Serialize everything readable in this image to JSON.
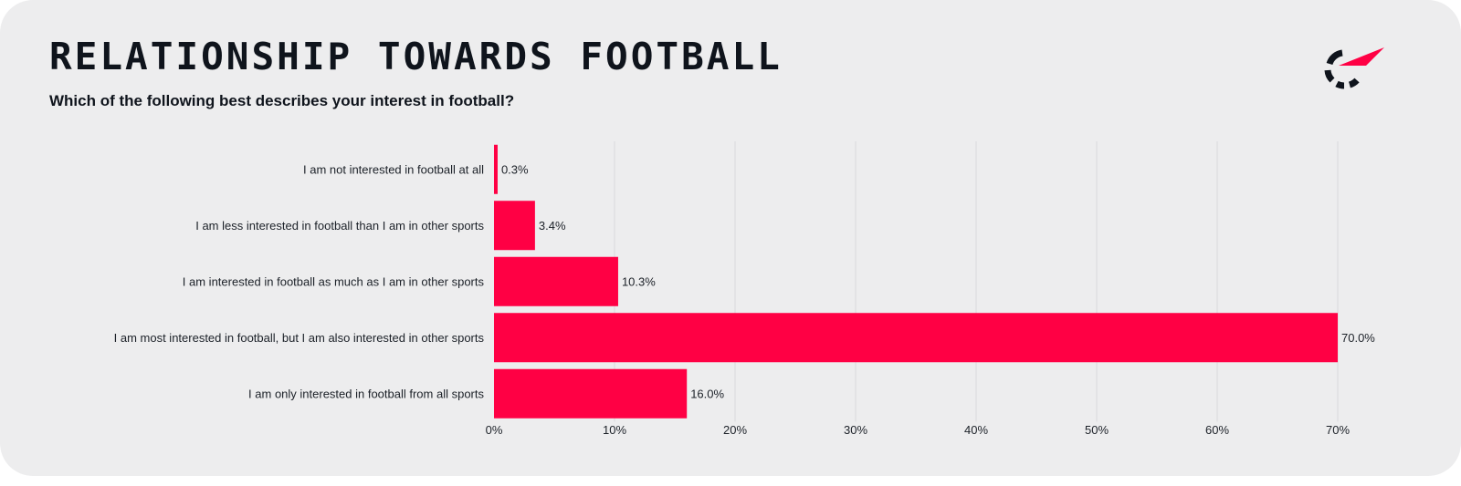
{
  "header": {
    "title": "RELATIONSHIP TOWARDS FOOTBALL",
    "subtitle": "Which of the following best describes your interest in football?"
  },
  "colors": {
    "background": "#ededee",
    "bar": "#ff0044",
    "text": "#0f141c",
    "grid": "#d9d9dc",
    "logo_dark": "#0f141c",
    "logo_accent": "#ff0044"
  },
  "logo": {
    "icon": "brand-logo-icon"
  },
  "chart_data": {
    "type": "bar",
    "orientation": "horizontal",
    "title": "RELATIONSHIP TOWARDS FOOTBALL",
    "subtitle": "Which of the following best describes your interest in football?",
    "categories": [
      "I am not interested in football at all",
      "I am less interested in football than I am in other sports",
      "I am interested in football as much as I am in other sports",
      "I am most interested in football, but I am also interested in other sports",
      "I am only interested in football from all sports"
    ],
    "values": [
      0.3,
      3.4,
      10.3,
      70.0,
      16.0
    ],
    "value_labels": [
      "0.3%",
      "3.4%",
      "10.3%",
      "70.0%",
      "16.0%"
    ],
    "xlim": [
      0,
      70
    ],
    "xticks": [
      0,
      10,
      20,
      30,
      40,
      50,
      60,
      70
    ],
    "xtick_labels": [
      "0%",
      "10%",
      "20%",
      "30%",
      "40%",
      "50%",
      "60%",
      "70%"
    ],
    "xlabel": "",
    "ylabel": "",
    "grid": "vertical",
    "legend": "none"
  }
}
